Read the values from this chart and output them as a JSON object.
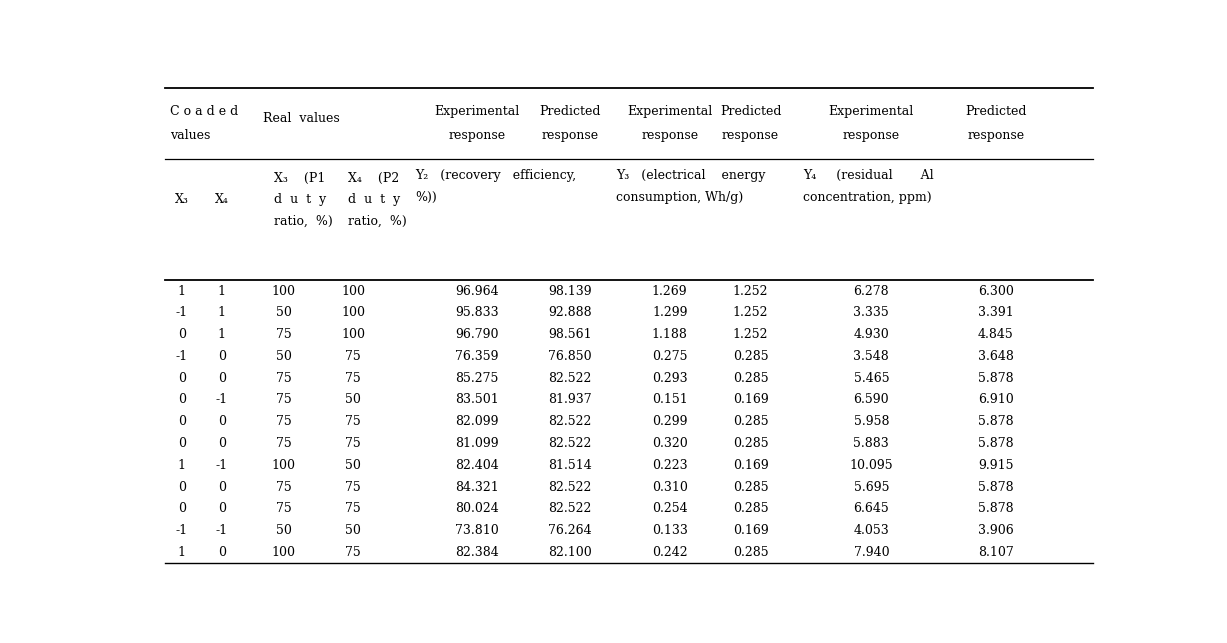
{
  "rows": [
    [
      "1",
      "1",
      "100",
      "100",
      "96.964",
      "98.139",
      "1.269",
      "1.252",
      "6.278",
      "6.300"
    ],
    [
      "-1",
      "1",
      "50",
      "100",
      "95.833",
      "92.888",
      "1.299",
      "1.252",
      "3.335",
      "3.391"
    ],
    [
      "0",
      "1",
      "75",
      "100",
      "96.790",
      "98.561",
      "1.188",
      "1.252",
      "4.930",
      "4.845"
    ],
    [
      "-1",
      "0",
      "50",
      "75",
      "76.359",
      "76.850",
      "0.275",
      "0.285",
      "3.548",
      "3.648"
    ],
    [
      "0",
      "0",
      "75",
      "75",
      "85.275",
      "82.522",
      "0.293",
      "0.285",
      "5.465",
      "5.878"
    ],
    [
      "0",
      "-1",
      "75",
      "50",
      "83.501",
      "81.937",
      "0.151",
      "0.169",
      "6.590",
      "6.910"
    ],
    [
      "0",
      "0",
      "75",
      "75",
      "82.099",
      "82.522",
      "0.299",
      "0.285",
      "5.958",
      "5.878"
    ],
    [
      "0",
      "0",
      "75",
      "75",
      "81.099",
      "82.522",
      "0.320",
      "0.285",
      "5.883",
      "5.878"
    ],
    [
      "1",
      "-1",
      "100",
      "50",
      "82.404",
      "81.514",
      "0.223",
      "0.169",
      "10.095",
      "9.915"
    ],
    [
      "0",
      "0",
      "75",
      "75",
      "84.321",
      "82.522",
      "0.310",
      "0.285",
      "5.695",
      "5.878"
    ],
    [
      "0",
      "0",
      "75",
      "75",
      "80.024",
      "82.522",
      "0.254",
      "0.285",
      "6.645",
      "5.878"
    ],
    [
      "-1",
      "-1",
      "50",
      "50",
      "73.810",
      "76.264",
      "0.133",
      "0.169",
      "4.053",
      "3.906"
    ],
    [
      "1",
      "0",
      "100",
      "75",
      "82.384",
      "82.100",
      "0.242",
      "0.285",
      "7.940",
      "8.107"
    ]
  ],
  "bg_color": "#ffffff",
  "text_color": "#000000",
  "font_family": "DejaVu Serif",
  "font_size": 9.0
}
